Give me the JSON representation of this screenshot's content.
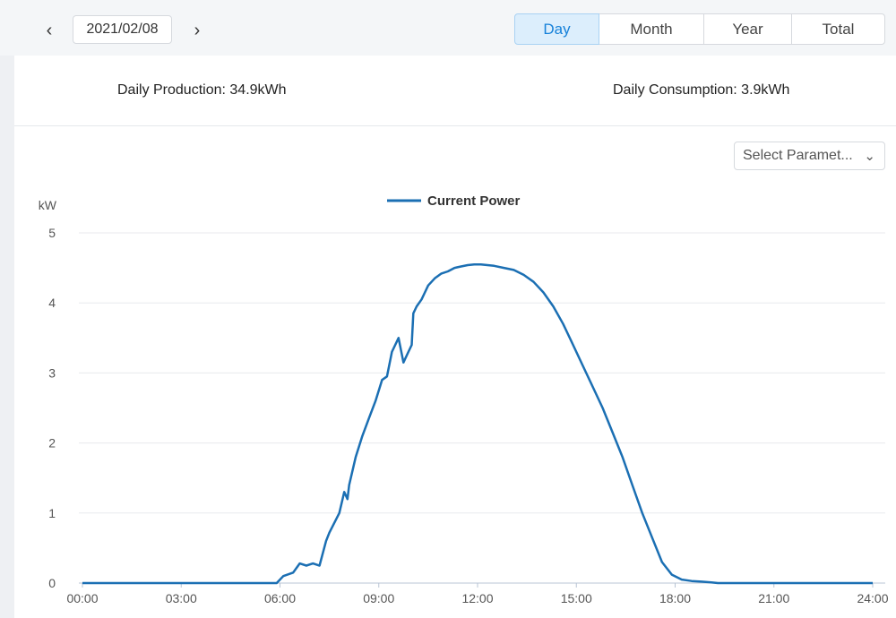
{
  "header": {
    "prev_icon": "‹",
    "next_icon": "›",
    "date": "2021/02/08",
    "tabs": [
      {
        "label": "Day",
        "active": true
      },
      {
        "label": "Month",
        "active": false
      },
      {
        "label": "Year",
        "active": false
      },
      {
        "label": "Total",
        "active": false
      }
    ]
  },
  "summary": {
    "production": "Daily Production: 34.9kWh",
    "consumption": "Daily Consumption: 3.9kWh"
  },
  "parameter_select": {
    "value": "Select Paramet...",
    "icon": "chevron-down-icon"
  },
  "colors": {
    "accent": "#1681d9",
    "series": "#1b6fb3"
  },
  "chart_data": {
    "type": "line",
    "ylabel": "kW",
    "ylim": [
      0,
      5
    ],
    "yticks": [
      "0",
      "1",
      "2",
      "3",
      "4",
      "5"
    ],
    "xlim": [
      0,
      24
    ],
    "xticks": [
      "00:00",
      "03:00",
      "06:00",
      "09:00",
      "12:00",
      "15:00",
      "18:00",
      "21:00",
      "24:00"
    ],
    "legend_position": "top-center",
    "grid": true,
    "series": [
      {
        "name": "Current Power",
        "x": [
          0,
          5.9,
          6.1,
          6.4,
          6.6,
          6.8,
          7.0,
          7.2,
          7.4,
          7.5,
          7.8,
          7.95,
          8.05,
          8.1,
          8.3,
          8.5,
          8.7,
          8.9,
          9.1,
          9.25,
          9.4,
          9.6,
          9.75,
          9.9,
          10.0,
          10.05,
          10.15,
          10.3,
          10.4,
          10.5,
          10.7,
          10.9,
          11.1,
          11.3,
          11.5,
          11.7,
          11.9,
          12.1,
          12.3,
          12.5,
          12.8,
          13.1,
          13.4,
          13.7,
          14.0,
          14.3,
          14.6,
          14.9,
          15.2,
          15.5,
          15.8,
          16.1,
          16.4,
          16.7,
          17.0,
          17.3,
          17.6,
          17.9,
          18.2,
          18.5,
          18.8,
          19.1,
          19.3,
          24.0
        ],
        "y": [
          0,
          0,
          0.1,
          0.15,
          0.28,
          0.25,
          0.28,
          0.25,
          0.6,
          0.72,
          1.0,
          1.3,
          1.2,
          1.4,
          1.8,
          2.1,
          2.35,
          2.6,
          2.9,
          2.95,
          3.3,
          3.5,
          3.15,
          3.3,
          3.4,
          3.85,
          3.95,
          4.05,
          4.15,
          4.25,
          4.35,
          4.42,
          4.45,
          4.5,
          4.52,
          4.54,
          4.55,
          4.55,
          4.54,
          4.53,
          4.5,
          4.47,
          4.4,
          4.3,
          4.15,
          3.95,
          3.7,
          3.4,
          3.1,
          2.8,
          2.5,
          2.15,
          1.8,
          1.4,
          1.0,
          0.65,
          0.3,
          0.12,
          0.05,
          0.03,
          0.02,
          0.01,
          0,
          0
        ]
      }
    ]
  }
}
